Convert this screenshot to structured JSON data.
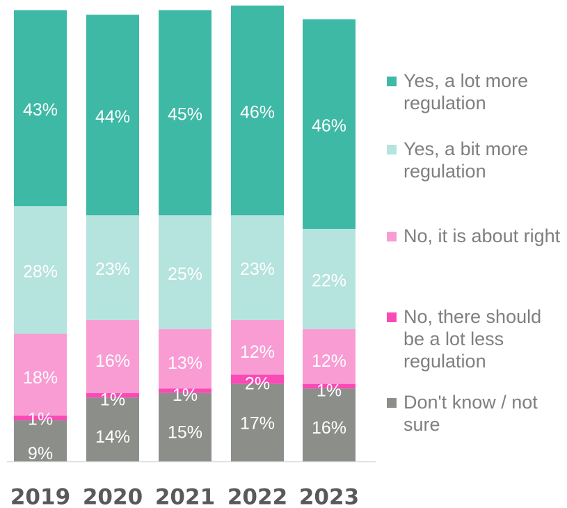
{
  "chart_data": {
    "type": "bar",
    "stacked": true,
    "title": "",
    "xlabel": "",
    "ylabel": "",
    "ylim": [
      0,
      100
    ],
    "grid": false,
    "legend_position": "right",
    "categories": [
      "2019",
      "2020",
      "2021",
      "2022",
      "2023"
    ],
    "series": [
      {
        "name": "Don't know / not sure",
        "color": "#8c8e8a",
        "values": [
          9,
          14,
          15,
          17,
          16
        ],
        "labels": [
          "9%",
          "14%",
          "15%",
          "17%",
          "16%"
        ]
      },
      {
        "name": "No, there should be a lot less regulation",
        "color": "#f94ab6",
        "values": [
          1,
          1,
          1,
          2,
          1
        ],
        "labels": [
          "1%",
          "1%",
          "1%",
          "2%",
          "1%"
        ]
      },
      {
        "name": "No, it is about right",
        "color": "#f89cd3",
        "values": [
          18,
          16,
          13,
          12,
          12
        ],
        "labels": [
          "18%",
          "16%",
          "13%",
          "12%",
          "12%"
        ]
      },
      {
        "name": "Yes, a bit more regulation",
        "color": "#b5e3de",
        "values": [
          28,
          23,
          25,
          23,
          22
        ],
        "labels": [
          "28%",
          "23%",
          "25%",
          "23%",
          "22%"
        ]
      },
      {
        "name": "Yes, a lot more regulation",
        "color": "#3db9a5",
        "values": [
          43,
          44,
          45,
          46,
          46
        ],
        "labels": [
          "43%",
          "44%",
          "45%",
          "46%",
          "46%"
        ]
      }
    ]
  }
}
